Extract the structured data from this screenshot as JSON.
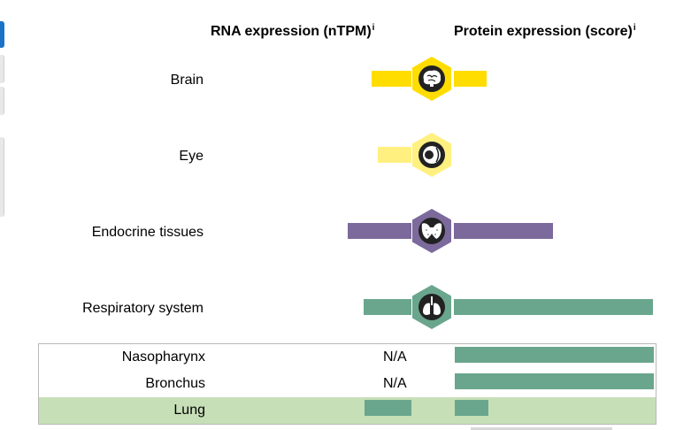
{
  "headers": {
    "rna": "RNA expression (nTPM)",
    "protein": "Protein expression (score)",
    "info_mark": "i"
  },
  "colors": {
    "brain": "#ffdd00",
    "eye_light": "#fff080",
    "endocrine": "#7b6a9b",
    "respiratory": "#6aa68d",
    "lung_row_bg": "#c6dfb7"
  },
  "tissues": [
    {
      "label": "Brain",
      "icon": "brain-icon",
      "rna_level": 0.19,
      "protein_level": 0.16
    },
    {
      "label": "Eye",
      "icon": "eye-icon",
      "rna_level": 0.15,
      "protein_level": 0.0
    },
    {
      "label": "Endocrine tissues",
      "icon": "thyroid-icon",
      "rna_level": 0.31,
      "protein_level": 0.5
    },
    {
      "label": "Respiratory system",
      "icon": "lungs-icon",
      "rna_level": 0.23,
      "protein_level": 1.0
    }
  ],
  "respiratory_subtissues": [
    {
      "label": "Nasopharynx",
      "rna": "N/A",
      "protein_level": 1.0
    },
    {
      "label": "Bronchus",
      "rna": "N/A",
      "protein_level": 1.0
    },
    {
      "label": "Lung",
      "rna": "",
      "rna_level": 0.23,
      "protein_level": 0.17
    }
  ]
}
